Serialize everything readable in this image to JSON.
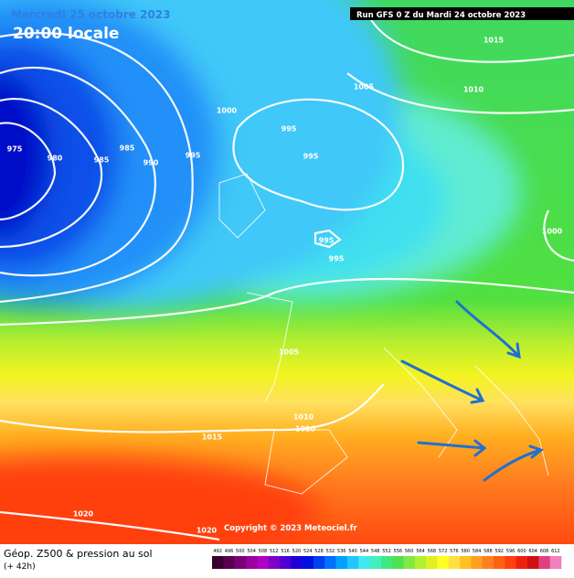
{
  "header": {
    "date": "Mercredi 25 octobre 2023",
    "time": "20:00 locale",
    "run": "Run GFS 0 Z du Mardi 24 octobre 2023"
  },
  "isobars": [
    "1015",
    "1005",
    "1010",
    "1000",
    "995",
    "995",
    "985",
    "975",
    "980",
    "985",
    "990",
    "995",
    "995",
    "995",
    "1000",
    "1005",
    "1010",
    "1010",
    "1015",
    "1020",
    "1020"
  ],
  "copyright": "Copyright © 2023 Meteociel.fr",
  "footer": {
    "title": "Géop. Z500 & pression au sol",
    "subtitle": "(+ 42h)"
  },
  "colorbar": {
    "labels": [
      "492",
      "496",
      "500",
      "504",
      "508",
      "512",
      "516",
      "520",
      "524",
      "528",
      "532",
      "536",
      "540",
      "544",
      "548",
      "552",
      "556",
      "560",
      "564",
      "568",
      "572",
      "576",
      "580",
      "584",
      "588",
      "592",
      "596",
      "600",
      "604",
      "608",
      "612"
    ],
    "colors": [
      "#3a0030",
      "#5a0050",
      "#7a0078",
      "#9a00a0",
      "#b000c0",
      "#8000c8",
      "#5000d0",
      "#2000d8",
      "#0010e0",
      "#0040f0",
      "#0070ff",
      "#00a0ff",
      "#20c8ff",
      "#40e8f0",
      "#40f0c0",
      "#40e880",
      "#50e050",
      "#80e840",
      "#b0f030",
      "#e0f020",
      "#ffff20",
      "#ffe040",
      "#ffc020",
      "#ffa020",
      "#ff8020",
      "#ff6010",
      "#ff4010",
      "#f02010",
      "#d01010",
      "#e04080",
      "#f080c0"
    ]
  }
}
